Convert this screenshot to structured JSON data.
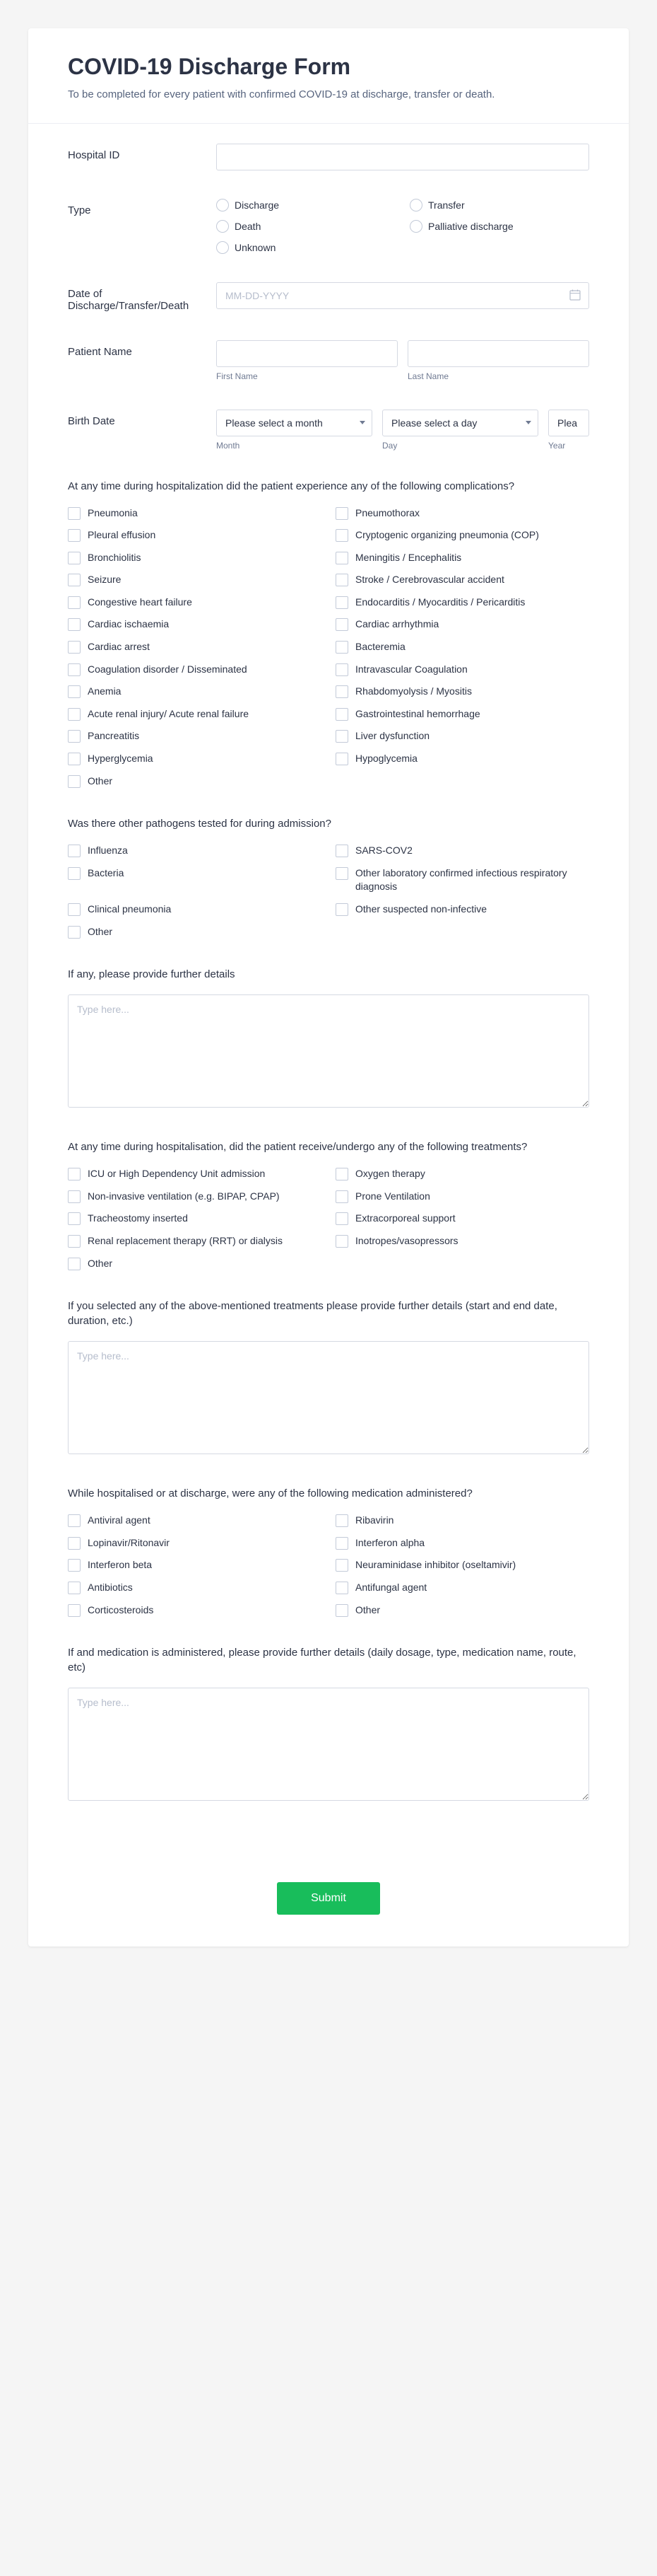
{
  "header": {
    "title": "COVID-19 Discharge Form",
    "subtitle": "To be completed for every patient with confirmed COVID-19 at discharge, transfer or death."
  },
  "fields": {
    "hospital_id": {
      "label": "Hospital ID"
    },
    "type": {
      "label": "Type",
      "options": [
        "Discharge",
        "Transfer",
        "Death",
        "Palliative discharge",
        "Unknown"
      ]
    },
    "date": {
      "label": "Date of Discharge/Transfer/Death",
      "placeholder": "MM-DD-YYYY"
    },
    "patient_name": {
      "label": "Patient Name",
      "first_sub": "First Name",
      "last_sub": "Last Name"
    },
    "birth_date": {
      "label": "Birth Date",
      "month_placeholder": "Please select a month",
      "day_placeholder": "Please select a day",
      "year_placeholder": "Plea",
      "month_sub": "Month",
      "day_sub": "Day",
      "year_sub": "Year"
    }
  },
  "complications": {
    "question": "At any time during hospitalization did the patient experience any of the following complications?",
    "items": [
      "Pneumonia",
      "Pneumothorax",
      "Pleural effusion",
      "Cryptogenic organizing pneumonia (COP)",
      "Bronchiolitis",
      "Meningitis / Encephalitis",
      "Seizure",
      "Stroke / Cerebrovascular accident",
      "Congestive heart failure",
      "Endocarditis / Myocarditis / Pericarditis",
      "Cardiac ischaemia",
      "Cardiac arrhythmia",
      "Cardiac arrest",
      "Bacteremia",
      "Coagulation disorder / Disseminated",
      "Intravascular Coagulation",
      "Anemia",
      "Rhabdomyolysis / Myositis",
      "Acute renal injury/ Acute renal failure",
      "Gastrointestinal hemorrhage",
      "Pancreatitis",
      "Liver dysfunction",
      "Hyperglycemia",
      "Hypoglycemia",
      "Other"
    ]
  },
  "pathogens": {
    "question": "Was there other pathogens tested for during admission?",
    "items": [
      "Influenza",
      "SARS-COV2",
      "Bacteria",
      "Other laboratory confirmed infectious respiratory diagnosis",
      "Clinical pneumonia",
      "Other suspected non-infective",
      "Other"
    ]
  },
  "pathogen_details": {
    "question": "If any, please provide further details",
    "placeholder": "Type here..."
  },
  "treatments": {
    "question": "At any time during hospitalisation, did the patient receive/undergo any of the following treatments?",
    "items": [
      "ICU or High Dependency Unit admission",
      "Oxygen therapy",
      "Non-invasive ventilation (e.g. BIPAP, CPAP)",
      "Prone Ventilation",
      "Tracheostomy inserted",
      "Extracorporeal support",
      "Renal replacement therapy (RRT) or dialysis",
      "Inotropes/vasopressors",
      "Other"
    ]
  },
  "treatment_details": {
    "question": "If you selected any of the above-mentioned treatments please provide further details (start and end date, duration, etc.)",
    "placeholder": "Type here..."
  },
  "medications": {
    "question": "While hospitalised or at discharge, were any of the following medication administered?",
    "items": [
      "Antiviral agent",
      "Ribavirin",
      "Lopinavir/Ritonavir",
      "Interferon alpha",
      "Interferon beta",
      "Neuraminidase inhibitor (oseltamivir)",
      "Antibiotics",
      "Antifungal agent",
      "Corticosteroids",
      "Other"
    ]
  },
  "medication_details": {
    "question": "If and medication is administered, please provide further details (daily dosage, type, medication name, route, etc)",
    "placeholder": "Type here..."
  },
  "submit_label": "Submit",
  "colors": {
    "accent": "#18bd5b",
    "text_primary": "#2c3345",
    "text_secondary": "#57647e",
    "border": "#d5d9e2",
    "background": "#ffffff"
  }
}
